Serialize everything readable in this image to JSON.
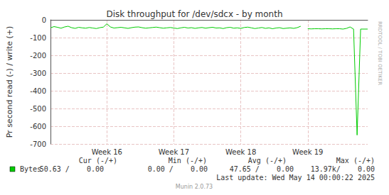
{
  "chart_data": {
    "type": "line",
    "title": "Disk throughput for /dev/sdcx - by month",
    "y_label": "Pr second read (-) / write (+)",
    "side_text": "RRDTOOL / TOBI OETIKER",
    "categories": [
      null,
      null,
      null,
      null,
      null,
      null,
      null,
      null,
      null,
      null,
      null,
      null,
      null,
      null,
      null,
      null,
      "Week 16",
      null,
      null,
      null,
      null,
      null,
      null,
      null,
      null,
      null,
      null,
      null,
      null,
      null,
      null,
      null,
      null,
      null,
      null,
      "Week 17",
      null,
      null,
      null,
      null,
      null,
      null,
      null,
      null,
      null,
      null,
      null,
      null,
      null,
      null,
      null,
      null,
      null,
      null,
      "Week 18",
      null,
      null,
      null,
      null,
      null,
      null,
      null,
      null,
      null,
      null,
      null,
      null,
      null,
      null,
      null,
      null,
      null,
      null,
      "Week 19",
      null,
      null,
      null,
      null,
      null,
      null,
      null,
      null,
      null,
      null,
      null,
      null,
      null,
      null,
      null,
      null,
      null
    ],
    "series": [
      {
        "name": "Bytes",
        "color": "#00cc00",
        "values": [
          -45,
          -38,
          -42,
          -47,
          -40,
          -36,
          -44,
          -48,
          -42,
          -45,
          -47,
          -43,
          -46,
          -49,
          -44,
          -41,
          -22,
          -40,
          -46,
          -44,
          -42,
          -45,
          -48,
          -44,
          -41,
          -40,
          -44,
          -47,
          -45,
          -43,
          -41,
          -44,
          -47,
          -45,
          -43,
          -46,
          -49,
          -45,
          -42,
          -46,
          -44,
          -48,
          -45,
          -43,
          -47,
          -44,
          -42,
          -46,
          -45,
          -49,
          -44,
          -42,
          -47,
          -45,
          -48,
          -43,
          -41,
          -45,
          -49,
          -46,
          -43,
          -48,
          -45,
          -50,
          -46,
          -44,
          -49,
          -47,
          -45,
          -48,
          -44,
          -36,
          null,
          -50,
          -51,
          -50,
          -50,
          -51,
          -50,
          -50,
          -51,
          -50,
          -50,
          -52,
          -48,
          -40,
          -52,
          -650,
          -52,
          -52,
          -52
        ]
      }
    ],
    "ylim": [
      -700,
      0
    ],
    "yticks": [
      -700,
      -600,
      -500,
      -400,
      -300,
      -200,
      -100,
      0
    ],
    "grid": true,
    "legend_stats": {
      "headers": [
        "Cur (-/+)",
        "Min (-/+)",
        "Avg (-/+)",
        "Max (-/+)"
      ],
      "values": [
        "50.63 /    0.00",
        "0.00 /    0.00",
        "47.65 /    0.00",
        "13.97k/    0.00"
      ]
    },
    "last_update": "Last update: Wed May 14 00:00:22 2025",
    "footer": "Munin 2.0.73"
  }
}
